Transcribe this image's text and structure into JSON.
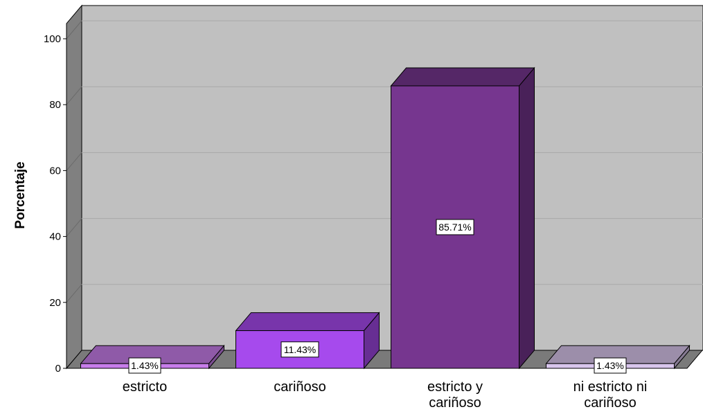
{
  "chart_data": {
    "type": "bar",
    "title": "",
    "xlabel": "",
    "ylabel": "Porcentaje",
    "ylim": [
      0,
      100
    ],
    "yticks": [
      0,
      20,
      40,
      60,
      80,
      100
    ],
    "grid": true,
    "legend": "none",
    "categories": [
      [
        "estricto"
      ],
      [
        "cariñoso"
      ],
      [
        "estricto y",
        "cariñoso"
      ],
      [
        "ni estricto ni",
        "cariñoso"
      ]
    ],
    "values": [
      1.43,
      11.43,
      85.71,
      1.43
    ],
    "data_labels": [
      "1.43%",
      "11.43%",
      "85.71%",
      "1.43%"
    ],
    "colors": {
      "bars": [
        "#c77dea",
        "#a64aed",
        "#76368f",
        "#d8c5ec"
      ],
      "plot_background": "#c0c0c0",
      "gridline": "#a8a8a8",
      "floor": "#7a7a7a",
      "side_wall": "#808080"
    }
  }
}
